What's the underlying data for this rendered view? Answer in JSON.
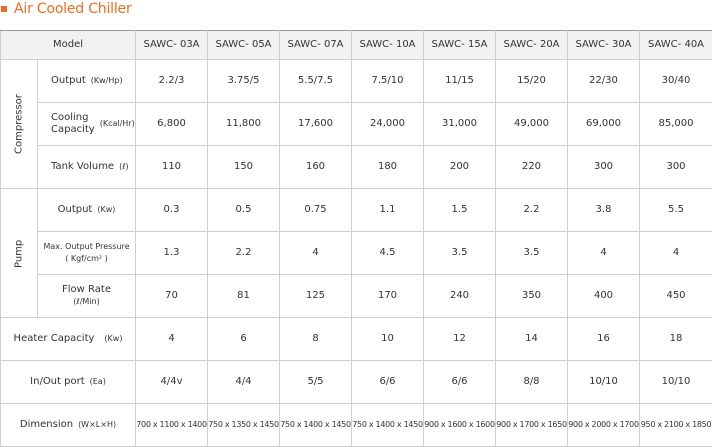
{
  "title": "Air Cooled Chiller",
  "columns": {
    "model_label": "Model",
    "models": [
      "SAWC- 03A",
      "SAWC- 05A",
      "SAWC- 07A",
      "SAWC- 10A",
      "SAWC- 15A",
      "SAWC- 20A",
      "SAWC- 30A",
      "SAWC- 40A"
    ]
  },
  "groups": {
    "compressor": "Compressor",
    "pump": "Pump"
  },
  "rows": {
    "comp_output": {
      "label": "Output",
      "unit": "(Kw/Hp)",
      "values": [
        "2.2/3",
        "3.75/5",
        "5.5/7.5",
        "7.5/10",
        "11/15",
        "15/20",
        "22/30",
        "30/40"
      ]
    },
    "comp_cooling": {
      "label_line1": "Cooling",
      "label_line2": "Capacity",
      "unit": "(Kcal/Hr)",
      "values": [
        "6,800",
        "11,800",
        "17,600",
        "24,000",
        "31,000",
        "49,000",
        "69,000",
        "85,000"
      ]
    },
    "comp_tank": {
      "label": "Tank Volume",
      "unit": "(ℓ)",
      "values": [
        "110",
        "150",
        "160",
        "180",
        "200",
        "220",
        "300",
        "300"
      ]
    },
    "pump_output": {
      "label": "Output",
      "unit": "(Kw)",
      "values": [
        "0.3",
        "0.5",
        "0.75",
        "1.1",
        "1.5",
        "2.2",
        "3.8",
        "5.5"
      ]
    },
    "pump_pressure": {
      "label": "Max. Output Pressure",
      "unit": "( Kgf/cm² )",
      "values": [
        "1.3",
        "2.2",
        "4",
        "4.5",
        "3.5",
        "3.5",
        "4",
        "4"
      ]
    },
    "pump_flow": {
      "label": "Flow Rate",
      "unit": "(ℓ/Min)",
      "values": [
        "70",
        "81",
        "125",
        "170",
        "240",
        "350",
        "400",
        "450"
      ]
    },
    "heater": {
      "label": "Heater Capacity",
      "unit": "(Kw)",
      "values": [
        "4",
        "6",
        "8",
        "10",
        "12",
        "14",
        "16",
        "18"
      ]
    },
    "inout": {
      "label": "In/Out port",
      "unit": "(Ea)",
      "values": [
        "4/4v",
        "4/4",
        "5/5",
        "6/6",
        "6/6",
        "8/8",
        "10/10",
        "10/10"
      ]
    },
    "dimension": {
      "label": "Dimension",
      "unit": "(W×L×H)",
      "values": [
        "700 x 1100 x 1400",
        "750 x 1350 x 1450",
        "750 x 1400 x 1450",
        "750 x 1400 x 1450",
        "900 x 1600 x 1600",
        "900 x 1700 x 1650",
        "900 x 2000 x 1700",
        "950 x 2100 x 1850"
      ]
    }
  }
}
